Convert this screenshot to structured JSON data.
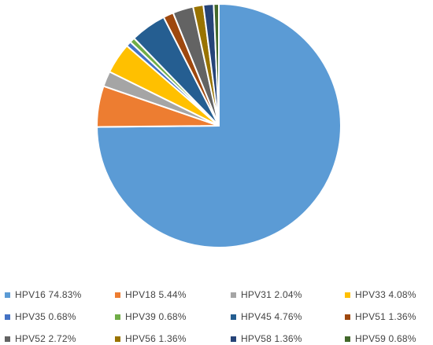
{
  "chart_data": {
    "type": "pie",
    "start_angle_deg": 0,
    "direction": "clockwise",
    "slices": [
      {
        "name": "HPV16",
        "value": 74.83,
        "label": "HPV16 74.83%",
        "color": "#5b9bd5"
      },
      {
        "name": "HPV18",
        "value": 5.44,
        "label": "HPV18 5.44%",
        "color": "#ed7d31"
      },
      {
        "name": "HPV31",
        "value": 2.04,
        "label": "HPV31 2.04%",
        "color": "#a5a5a5"
      },
      {
        "name": "HPV33",
        "value": 4.08,
        "label": "HPV33 4.08%",
        "color": "#ffc000"
      },
      {
        "name": "HPV35",
        "value": 0.68,
        "label": "HPV35 0.68%",
        "color": "#4472c4"
      },
      {
        "name": "HPV39",
        "value": 0.68,
        "label": "HPV39 0.68%",
        "color": "#70ad47"
      },
      {
        "name": "HPV45",
        "value": 4.76,
        "label": "HPV45 4.76%",
        "color": "#255e91"
      },
      {
        "name": "HPV51",
        "value": 1.36,
        "label": "HPV51 1.36%",
        "color": "#9e480e"
      },
      {
        "name": "HPV52",
        "value": 2.72,
        "label": "HPV52 2.72%",
        "color": "#636363"
      },
      {
        "name": "HPV56",
        "value": 1.36,
        "label": "HPV56 1.36%",
        "color": "#997300"
      },
      {
        "name": "HPV58",
        "value": 1.36,
        "label": "HPV58 1.36%",
        "color": "#264478"
      },
      {
        "name": "HPV59",
        "value": 0.68,
        "label": "HPV59 0.68%",
        "color": "#43682b"
      }
    ],
    "legend_position": "bottom"
  }
}
